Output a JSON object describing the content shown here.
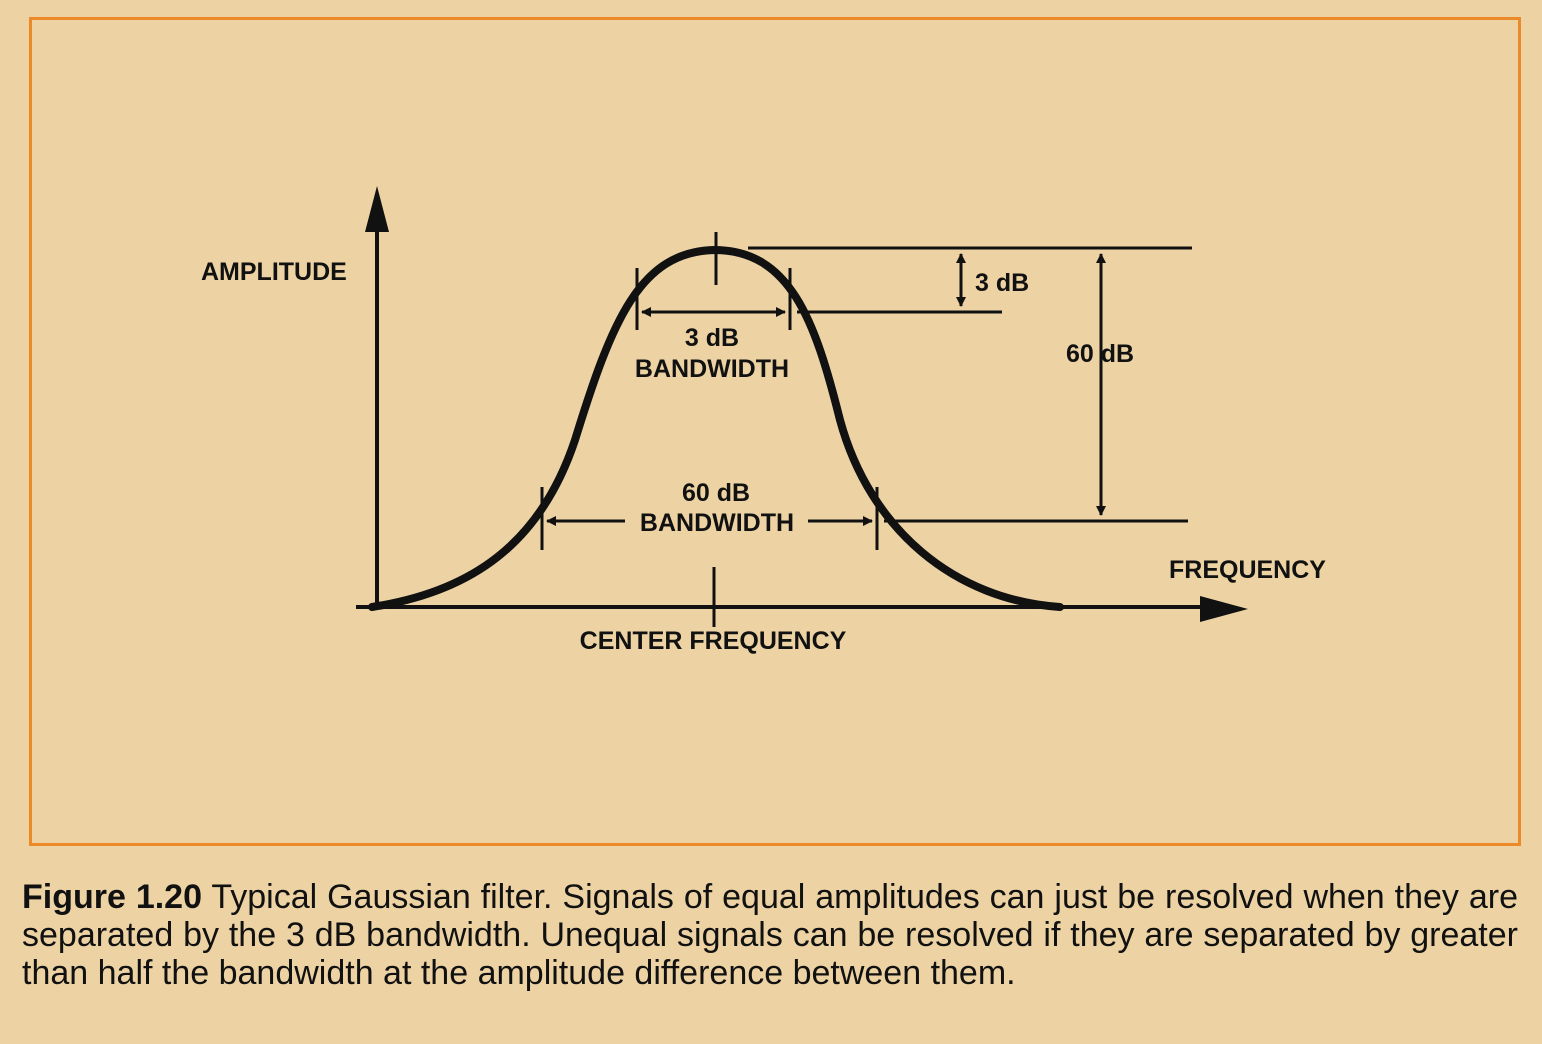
{
  "diagram": {
    "y_axis_label": "AMPLITUDE",
    "x_axis_label": "FREQUENCY",
    "center_label": "CENTER FREQUENCY",
    "bw3_line1": "3 dB",
    "bw3_line2": "BANDWIDTH",
    "bw60_line1": "60 dB",
    "bw60_line2": "BANDWIDTH",
    "dim_3db": "3 dB",
    "dim_60db": "60 dB"
  },
  "caption": {
    "label": "Figure 1.20",
    "text": " Typical Gaussian filter. Signals of equal amplitudes can just be resolved when they are separated by the 3 dB bandwidth. Unequal signals can be resolved if they are separated by greater than half the bandwidth at the amplitude difference between them."
  }
}
